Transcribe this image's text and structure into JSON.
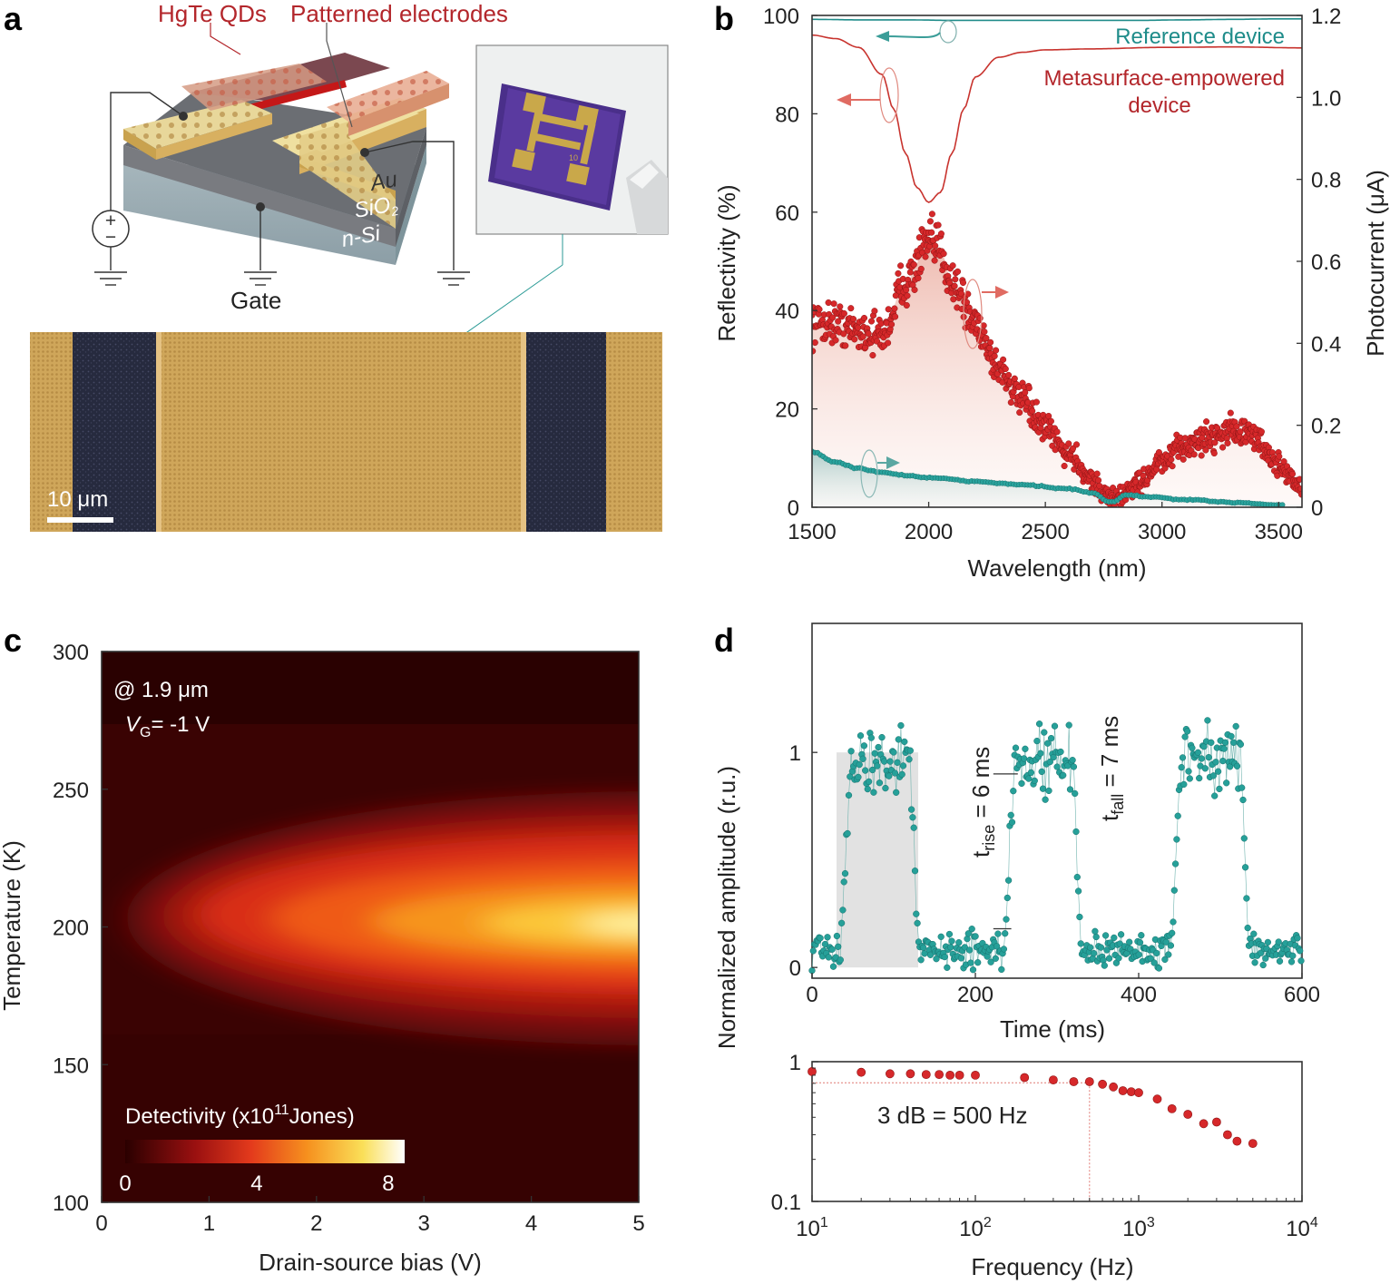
{
  "panel_labels": {
    "a": "a",
    "b": "b",
    "c": "c",
    "d": "d"
  },
  "colors": {
    "red": "#b3262b",
    "teal": "#1f8c8a",
    "gold": "#d8b86a",
    "dark_navy": "#2b2f45"
  },
  "panel_a": {
    "label_qd": "HgTe QDs",
    "label_electrodes": "Patterned electrodes",
    "layer_au": "Au",
    "layer_sio2": "SiO",
    "layer_sio2_sub": "2",
    "layer_nsi": "n-Si",
    "gate_label": "Gate",
    "photo_chip_text": "10",
    "scale_bar_text": "10 μm",
    "source_icon": "voltage-source-icon",
    "ground_icon": "ground-icon"
  },
  "chart_data": [
    {
      "id": "b",
      "type": "line",
      "title": "",
      "xlabel": "Wavelength (nm)",
      "ylabel": "Reflectivity (%)",
      "y2label": "Photocurrent (μA)",
      "xlim": [
        1500,
        3600
      ],
      "ylim": [
        0,
        100
      ],
      "y2lim": [
        0,
        1.2
      ],
      "xticks": [
        1500,
        2000,
        2500,
        3000,
        3500
      ],
      "yticks": [
        0,
        20,
        40,
        60,
        80,
        100
      ],
      "y2ticks": [
        "0",
        "0.2",
        "0.4",
        "0.6",
        "0.8",
        "1.0",
        "1.2"
      ],
      "legend": [
        "Reference device",
        "Metasurface-empowered",
        "device"
      ],
      "series": [
        {
          "name": "Reference device reflectivity",
          "axis": "left",
          "x": [
            1500,
            1700,
            1900,
            2100,
            2300,
            2500,
            2700,
            2900,
            3100,
            3300,
            3500,
            3600
          ],
          "values": [
            99.2,
            99.1,
            99.1,
            99.0,
            99.0,
            99.0,
            99.0,
            99.0,
            99.1,
            99.2,
            99.3,
            99.3
          ]
        },
        {
          "name": "Metasurface-empowered device reflectivity",
          "axis": "left",
          "x": [
            1500,
            1600,
            1700,
            1800,
            1850,
            1900,
            1950,
            2000,
            2050,
            2100,
            2150,
            2200,
            2300,
            2400,
            2500,
            2700,
            3000,
            3300,
            3600
          ],
          "values": [
            96.0,
            95.3,
            93.5,
            88.0,
            81.0,
            72.0,
            65.0,
            62.0,
            64.0,
            72.0,
            81.0,
            87.5,
            91.5,
            92.5,
            93.0,
            93.2,
            93.5,
            93.6,
            93.4
          ]
        },
        {
          "name": "Metasurface-empowered device photocurrent",
          "axis": "right",
          "x": [
            1500,
            1600,
            1700,
            1800,
            1900,
            2000,
            2050,
            2100,
            2200,
            2300,
            2400,
            2500,
            2600,
            2700,
            2750,
            2800,
            2900,
            3000,
            3100,
            3200,
            3300,
            3400,
            3500,
            3600
          ],
          "values": [
            0.45,
            0.45,
            0.43,
            0.42,
            0.55,
            0.64,
            0.63,
            0.55,
            0.45,
            0.34,
            0.26,
            0.19,
            0.13,
            0.07,
            0.03,
            0.02,
            0.06,
            0.11,
            0.15,
            0.17,
            0.19,
            0.17,
            0.1,
            0.05
          ]
        },
        {
          "name": "Reference device photocurrent",
          "axis": "right",
          "x": [
            1500,
            1600,
            1700,
            1800,
            1900,
            2000,
            2200,
            2400,
            2600,
            2700,
            2780,
            2850,
            2950,
            3100,
            3300,
            3500
          ],
          "values": [
            0.135,
            0.11,
            0.095,
            0.085,
            0.078,
            0.072,
            0.063,
            0.055,
            0.045,
            0.035,
            0.012,
            0.03,
            0.025,
            0.018,
            0.012,
            0.006
          ]
        }
      ]
    },
    {
      "id": "c",
      "type": "heatmap",
      "xlabel": "Drain-source bias (V)",
      "ylabel": "Temperature (K)",
      "xlim": [
        0,
        5
      ],
      "ylim": [
        100,
        300
      ],
      "xticks": [
        0,
        1,
        2,
        3,
        4,
        5
      ],
      "yticks": [
        100,
        150,
        200,
        250,
        300
      ],
      "annotation_line1": "@ 1.9 μm",
      "annotation_line2": "V",
      "annotation_sub": "G",
      "annotation_rest": "= -1 V",
      "colorbar_label": "Detectivity (x10",
      "colorbar_exp": "11",
      "colorbar_unit": "Jones)",
      "colorbar_ticks": [
        "0",
        "4",
        "8"
      ],
      "colorbar_range": [
        0,
        8.5
      ],
      "peak": {
        "bias": 5,
        "temperature": 200,
        "detectivity": 8.5
      }
    },
    {
      "id": "d-top",
      "type": "scatter",
      "xlabel": "Time (ms)",
      "ylabel": "Normalized amplitude (r.u.)",
      "xlim": [
        0,
        600
      ],
      "ylim": [
        -0.05,
        1.6
      ],
      "xticks": [
        0,
        200,
        400,
        600
      ],
      "yticks": [
        0,
        1
      ],
      "light_on_windows_ms": [
        [
          30,
          130
        ]
      ],
      "cycles_high_ms": [
        [
          35,
          130
        ],
        [
          235,
          330
        ],
        [
          440,
          535
        ]
      ],
      "rise_text": "t",
      "rise_sub": "rise",
      "rise_value": " = 6 ms",
      "fall_text": "t",
      "fall_sub": "fall",
      "fall_value": " = 7 ms"
    },
    {
      "id": "d-bottom",
      "type": "scatter",
      "xlabel": "Frequency (Hz)",
      "ylabel": "",
      "xscale": "log",
      "yscale": "log",
      "xlim": [
        10,
        10000
      ],
      "ylim": [
        0.1,
        1
      ],
      "xtick_base": "10",
      "xtick_exps": [
        "1",
        "2",
        "3",
        "4"
      ],
      "yticks": [
        "0.1",
        "1"
      ],
      "annotation": "3 dB = 500 Hz",
      "cutoff_hz": 500,
      "cutoff_level": 0.707,
      "x": [
        10,
        20,
        30,
        40,
        50,
        60,
        70,
        80,
        100,
        200,
        300,
        400,
        500,
        600,
        700,
        800,
        900,
        1000,
        1300,
        1600,
        2000,
        2500,
        3000,
        3500,
        4000,
        5000
      ],
      "values": [
        0.85,
        0.84,
        0.82,
        0.82,
        0.81,
        0.81,
        0.8,
        0.8,
        0.8,
        0.77,
        0.74,
        0.72,
        0.72,
        0.69,
        0.66,
        0.62,
        0.61,
        0.6,
        0.54,
        0.46,
        0.42,
        0.36,
        0.37,
        0.3,
        0.27,
        0.26
      ]
    }
  ]
}
